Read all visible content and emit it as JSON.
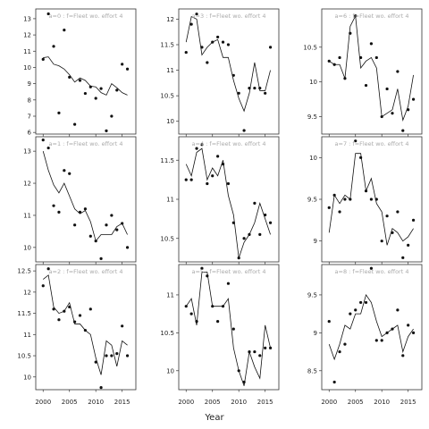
{
  "chart_data": {
    "type": "scatter",
    "xlabel": "Year",
    "x_ticks": [
      2000,
      2005,
      2010,
      2015
    ],
    "x_tick_labels": [
      "2000",
      "2005",
      "2010",
      "2015"
    ],
    "xlim": [
      1998.6,
      2017.6
    ],
    "panels": [
      {
        "title": "a=0  :  f=Fleet wo. effort 4",
        "ylim": [
          5.9,
          13.6
        ],
        "yticks": [
          6,
          7,
          8,
          9,
          10,
          11,
          12,
          13
        ],
        "years": [
          2000,
          2001,
          2002,
          2003,
          2004,
          2005,
          2006,
          2007,
          2008,
          2009,
          2010,
          2011,
          2012,
          2013,
          2014,
          2015,
          2016
        ],
        "obs": [
          10.5,
          13.3,
          11.3,
          7.2,
          12.3,
          9.4,
          6.5,
          9.2,
          8.4,
          8.8,
          8.1,
          8.7,
          6.1,
          7.0,
          8.6,
          10.2,
          9.9
        ],
        "fit": [
          10.6,
          10.65,
          10.2,
          10.1,
          9.9,
          9.55,
          9.1,
          9.35,
          9.2,
          8.85,
          8.8,
          8.45,
          8.3,
          9.0,
          8.75,
          8.45,
          8.3
        ]
      },
      {
        "title": "a=3  :  f=Fleet wo. effort 4",
        "ylim": [
          9.75,
          12.2
        ],
        "yticks": [
          10.0,
          10.5,
          11.0,
          11.5,
          12.0
        ],
        "years": [
          2000,
          2001,
          2002,
          2003,
          2004,
          2005,
          2006,
          2007,
          2008,
          2009,
          2010,
          2011,
          2012,
          2013,
          2014,
          2015,
          2016
        ],
        "obs": [
          11.35,
          11.9,
          12.1,
          11.45,
          11.15,
          11.55,
          11.65,
          11.55,
          11.5,
          10.9,
          10.55,
          9.82,
          10.65,
          10.65,
          10.65,
          10.55,
          11.45
        ],
        "fit": [
          11.55,
          12.05,
          12.0,
          11.3,
          11.45,
          11.55,
          11.6,
          11.25,
          11.25,
          10.8,
          10.45,
          10.2,
          10.55,
          11.15,
          10.6,
          10.6,
          11.0
        ]
      },
      {
        "title": "a=6  :  f=Fleet wo. effort 4",
        "ylim": [
          9.25,
          11.05
        ],
        "yticks": [
          9.5,
          10.0,
          10.5
        ],
        "years": [
          2000,
          2001,
          2002,
          2003,
          2004,
          2005,
          2006,
          2007,
          2008,
          2009,
          2010,
          2011,
          2012,
          2013,
          2014,
          2015,
          2016
        ],
        "obs": [
          10.3,
          10.25,
          10.35,
          10.05,
          10.7,
          10.95,
          10.35,
          9.95,
          10.55,
          10.35,
          9.5,
          9.9,
          9.55,
          10.15,
          9.3,
          9.6,
          9.75
        ],
        "fit": [
          10.3,
          10.25,
          10.25,
          10.05,
          10.8,
          10.95,
          10.2,
          10.3,
          10.35,
          10.2,
          9.5,
          9.55,
          9.6,
          9.9,
          9.45,
          9.65,
          10.1
        ]
      },
      {
        "title": "a=1  :  f=Fleet wo. effort 4",
        "ylim": [
          9.55,
          13.45
        ],
        "yticks": [
          10,
          11,
          12,
          13
        ],
        "years": [
          2000,
          2001,
          2002,
          2003,
          2004,
          2005,
          2006,
          2007,
          2008,
          2009,
          2010,
          2011,
          2012,
          2013,
          2014,
          2015,
          2016
        ],
        "obs": [
          13.35,
          13.1,
          11.3,
          11.1,
          12.4,
          12.3,
          10.7,
          11.1,
          11.2,
          10.35,
          10.2,
          9.65,
          10.7,
          11.0,
          10.55,
          10.75,
          10.0
        ],
        "fit": [
          13.0,
          12.4,
          11.95,
          11.7,
          12.0,
          11.6,
          11.2,
          11.05,
          11.15,
          10.8,
          10.2,
          10.4,
          10.4,
          10.4,
          10.65,
          10.75,
          10.4
        ]
      },
      {
        "title": "a=4  :  f=Fleet wo. effort 4",
        "ylim": [
          10.2,
          11.8
        ],
        "yticks": [
          10.5,
          11.0,
          11.5
        ],
        "years": [
          2000,
          2001,
          2002,
          2003,
          2004,
          2005,
          2006,
          2007,
          2008,
          2009,
          2010,
          2011,
          2012,
          2013,
          2014,
          2015,
          2016
        ],
        "obs": [
          11.25,
          11.25,
          11.65,
          11.7,
          11.2,
          11.3,
          11.55,
          11.45,
          11.2,
          10.7,
          10.25,
          10.5,
          10.55,
          10.95,
          10.55,
          10.8,
          10.7
        ],
        "fit": [
          11.45,
          11.3,
          11.6,
          11.65,
          11.25,
          11.4,
          11.3,
          11.5,
          11.05,
          10.8,
          10.25,
          10.45,
          10.55,
          10.7,
          10.95,
          10.75,
          10.55
        ]
      },
      {
        "title": "a=7  :  f=Fleet wo. effort 4",
        "ylim": [
          8.75,
          10.25
        ],
        "yticks": [
          9.0,
          9.5,
          10.0
        ],
        "years": [
          2000,
          2001,
          2002,
          2003,
          2004,
          2005,
          2006,
          2007,
          2008,
          2009,
          2010,
          2011,
          2012,
          2013,
          2014,
          2015,
          2016
        ],
        "obs": [
          9.4,
          9.55,
          9.35,
          9.5,
          9.5,
          10.2,
          10.0,
          9.6,
          9.5,
          9.5,
          9.0,
          9.3,
          9.1,
          9.35,
          8.8,
          8.95,
          9.25
        ],
        "fit": [
          9.1,
          9.55,
          9.45,
          9.55,
          9.5,
          10.05,
          10.05,
          9.6,
          9.75,
          9.45,
          9.35,
          8.95,
          9.15,
          9.1,
          9.0,
          9.05,
          9.15
        ]
      },
      {
        "title": "a=2  :  f=Fleet wo. effort 4",
        "ylim": [
          9.7,
          12.65
        ],
        "yticks": [
          10.0,
          10.5,
          11.0,
          11.5,
          12.0,
          12.5
        ],
        "years": [
          2000,
          2001,
          2002,
          2003,
          2004,
          2005,
          2006,
          2007,
          2008,
          2009,
          2010,
          2011,
          2012,
          2013,
          2014,
          2015,
          2016
        ],
        "obs": [
          12.15,
          12.55,
          11.6,
          11.35,
          11.55,
          11.65,
          11.3,
          11.45,
          11.1,
          11.6,
          10.35,
          9.75,
          10.5,
          10.5,
          10.55,
          11.2,
          10.5
        ],
        "fit": [
          12.3,
          12.4,
          11.65,
          11.5,
          11.55,
          11.75,
          11.25,
          11.25,
          11.1,
          11.0,
          10.45,
          10.05,
          10.85,
          10.75,
          10.25,
          10.85,
          10.75
        ]
      },
      {
        "title": "a=5  :  f=Fleet wo. effort 4",
        "ylim": [
          9.75,
          11.4
        ],
        "yticks": [
          10.0,
          10.5,
          11.0
        ],
        "years": [
          2000,
          2001,
          2002,
          2003,
          2004,
          2005,
          2006,
          2007,
          2008,
          2009,
          2010,
          2011,
          2012,
          2013,
          2014,
          2015,
          2016
        ],
        "obs": [
          10.85,
          10.75,
          10.65,
          11.35,
          11.25,
          10.85,
          10.65,
          10.85,
          11.15,
          10.55,
          10.0,
          9.85,
          10.25,
          10.25,
          10.2,
          10.3,
          10.3
        ],
        "fit": [
          10.85,
          10.95,
          10.6,
          11.3,
          11.3,
          10.85,
          10.85,
          10.85,
          10.95,
          10.3,
          10.0,
          9.8,
          10.25,
          10.05,
          9.9,
          10.6,
          10.3
        ]
      },
      {
        "title": "a=8  :  f=Fleet wo. effort 4",
        "ylim": [
          8.25,
          9.9
        ],
        "yticks": [
          8.5,
          9.0,
          9.5
        ],
        "years": [
          2000,
          2001,
          2002,
          2003,
          2004,
          2005,
          2006,
          2007,
          2008,
          2009,
          2010,
          2011,
          2012,
          2013,
          2014,
          2015,
          2016
        ],
        "obs": [
          9.15,
          8.35,
          8.75,
          8.85,
          9.25,
          9.3,
          9.4,
          9.4,
          9.85,
          8.9,
          8.9,
          9.0,
          9.05,
          9.3,
          8.7,
          9.1,
          9.0
        ],
        "fit": [
          8.85,
          8.65,
          8.85,
          9.1,
          9.05,
          9.25,
          9.25,
          9.5,
          9.4,
          9.15,
          8.95,
          9.0,
          9.05,
          9.1,
          8.75,
          8.95,
          9.05
        ]
      }
    ]
  }
}
